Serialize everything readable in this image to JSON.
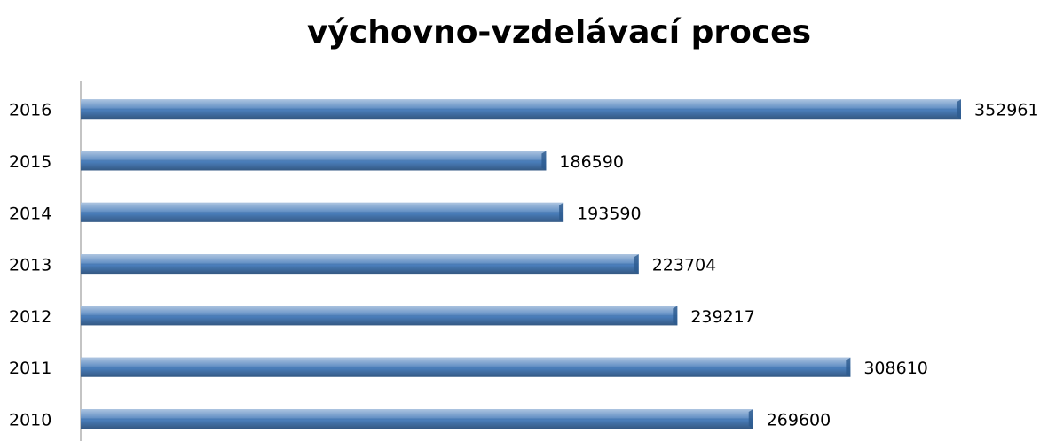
{
  "chart_data": {
    "type": "bar",
    "orientation": "horizontal",
    "title": "výchovno-vzdelávací proces",
    "categories": [
      "2010",
      "2011",
      "2012",
      "2013",
      "2014",
      "2015",
      "2016"
    ],
    "values": [
      269600,
      308610,
      239217,
      223704,
      193590,
      186590,
      352961
    ],
    "color": "#4a7ebb"
  }
}
